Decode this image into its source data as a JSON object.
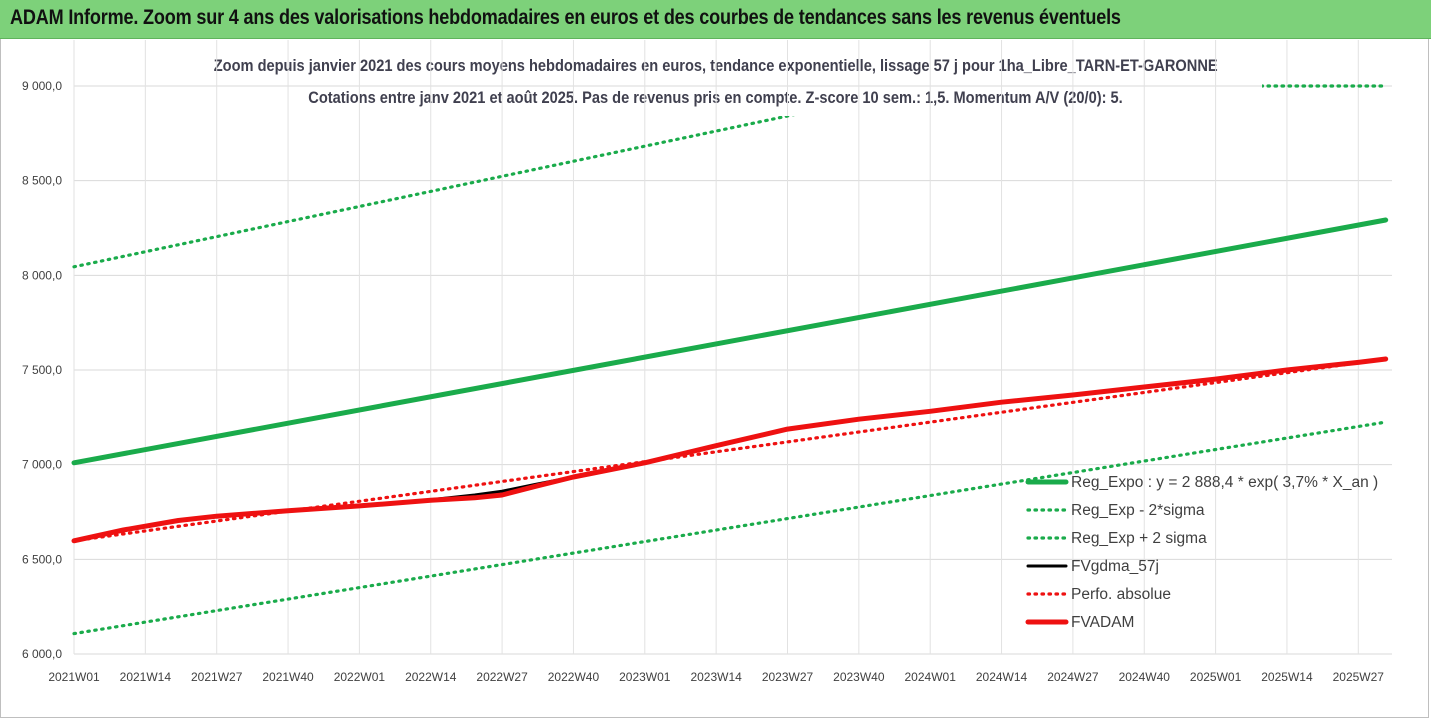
{
  "banner": {
    "title": "ADAM Informe. Zoom sur 4 ans des valorisations hebdomadaires en euros et des courbes de tendances sans les revenus éventuels"
  },
  "chart_data": {
    "type": "line",
    "title_line1": "Zoom depuis janvier 2021 des cours moyens hebdomadaires en euros, tendance exponentielle, lissage 57 j pour 1ha_Libre_TARN-ET-GARONNE",
    "title_line2": "Cotations entre janv 2021 et août 2025.  Pas de revenus pris en compte. Z-score 10 sem.: 1,5. Momentum A/V (20/0): 5.",
    "ylim": [
      6000,
      9000
    ],
    "y_ticks": [
      "6 000,0",
      "6 500,0",
      "7 000,0",
      "7 500,0",
      "8 000,0",
      "8 500,0",
      "9 000,0"
    ],
    "y_tick_values": [
      6000,
      6500,
      7000,
      7500,
      8000,
      8500,
      9000
    ],
    "x_ticks": [
      "2021W01",
      "2021W14",
      "2021W27",
      "2021W40",
      "2022W01",
      "2022W14",
      "2022W27",
      "2022W40",
      "2023W01",
      "2023W14",
      "2023W27",
      "2023W40",
      "2024W01",
      "2024W14",
      "2024W27",
      "2024W40",
      "2025W01",
      "2025W14",
      "2025W27"
    ],
    "grid": true,
    "legend_position": "right",
    "colors": {
      "green": "#1aab4b",
      "red": "#ee1111",
      "black": "#000000"
    },
    "series": [
      {
        "name": "Reg_Expo : y = 2 888,4 * exp( 3,7% *  X_an )",
        "style": "solid-thick",
        "color": "#1aab4b",
        "x": [
          "2021W01",
          "2025W32"
        ],
        "values": [
          7010,
          8292
        ]
      },
      {
        "name": "Reg_Exp - 2*sigma",
        "style": "dotted",
        "color": "#1aab4b",
        "x": [
          "2021W01",
          "2025W32"
        ],
        "values": [
          6108,
          7225
        ]
      },
      {
        "name": "Reg_Exp + 2 sigma",
        "style": "dotted",
        "color": "#1aab4b",
        "x": [
          "2021W01",
          "2023W30",
          "2025W02",
          "2025W32"
        ],
        "values": [
          8045,
          8860,
          9000,
          9000
        ]
      },
      {
        "name": "FVgdma_57j",
        "style": "solid",
        "color": "#000000",
        "x": [
          "2021W01",
          "2021W10",
          "2021W20",
          "2021W27",
          "2021W40",
          "2022W01",
          "2022W14",
          "2022W22",
          "2022W27",
          "2022W33",
          "2022W40",
          "2023W01",
          "2023W14",
          "2023W27",
          "2023W40",
          "2024W01",
          "2024W14",
          "2024W27",
          "2024W40",
          "2025W01",
          "2025W14",
          "2025W27",
          "2025W32"
        ],
        "values": [
          6598,
          6655,
          6705,
          6730,
          6758,
          6783,
          6815,
          6840,
          6860,
          6895,
          6935,
          7010,
          7100,
          7190,
          7240,
          7282,
          7330,
          7368,
          7410,
          7452,
          7500,
          7540,
          7558
        ]
      },
      {
        "name": "Perfo. absolue",
        "style": "dotted",
        "color": "#ee1111",
        "x": [
          "2021W01",
          "2025W32"
        ],
        "values": [
          6598,
          7558
        ]
      },
      {
        "name": "FVADAM",
        "style": "solid-thick",
        "color": "#ee1111",
        "x": [
          "2021W01",
          "2021W10",
          "2021W20",
          "2021W27",
          "2021W40",
          "2022W01",
          "2022W14",
          "2022W22",
          "2022W27",
          "2022W33",
          "2022W40",
          "2023W01",
          "2023W14",
          "2023W27",
          "2023W40",
          "2024W01",
          "2024W14",
          "2024W27",
          "2024W40",
          "2025W01",
          "2025W14",
          "2025W27",
          "2025W32"
        ],
        "values": [
          6598,
          6655,
          6705,
          6728,
          6757,
          6782,
          6812,
          6825,
          6840,
          6885,
          6935,
          7010,
          7100,
          7188,
          7240,
          7282,
          7330,
          7368,
          7410,
          7452,
          7500,
          7540,
          7558
        ]
      }
    ]
  }
}
